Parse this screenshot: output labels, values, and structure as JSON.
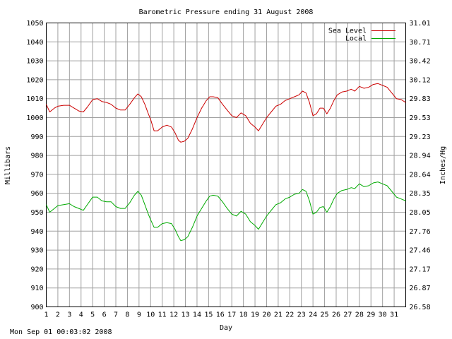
{
  "footer": "Mon Sep 01 00:03:02 2008",
  "chart_data": {
    "type": "line",
    "title": "Barometric Pressure ending 31 August 2008",
    "xlabel": "Day",
    "ylabel": "Millibars",
    "y2label": "Inches/Hg",
    "xlim": [
      1,
      32
    ],
    "ylim": [
      900,
      1050
    ],
    "x_ticks": [
      "1",
      "2",
      "3",
      "4",
      "5",
      "6",
      "7",
      "8",
      "9",
      "10",
      "11",
      "12",
      "13",
      "14",
      "15",
      "16",
      "17",
      "18",
      "19",
      "20",
      "21",
      "22",
      "23",
      "24",
      "25",
      "26",
      "27",
      "28",
      "29",
      "30",
      "31"
    ],
    "y_ticks": [
      "900",
      "910",
      "920",
      "930",
      "940",
      "950",
      "960",
      "970",
      "980",
      "990",
      "1000",
      "1010",
      "1020",
      "1030",
      "1040",
      "1050"
    ],
    "y2_ticks": [
      "26.58",
      "26.87",
      "27.17",
      "27.46",
      "27.76",
      "28.05",
      "28.35",
      "28.64",
      "28.94",
      "29.23",
      "29.53",
      "29.83",
      "30.12",
      "30.42",
      "30.71",
      "31.01"
    ],
    "grid": true,
    "legend_position": "top-right",
    "series": [
      {
        "name": "Sea Level",
        "color": "#cc0000",
        "x": [
          1,
          1.3,
          1.7,
          2,
          2.5,
          3,
          3.4,
          3.8,
          4.2,
          4.6,
          5,
          5.4,
          5.8,
          6.2,
          6.6,
          7,
          7.4,
          7.8,
          8.2,
          8.6,
          8.9,
          9.2,
          9.5,
          9.8,
          10,
          10.3,
          10.6,
          11,
          11.4,
          11.8,
          12.1,
          12.4,
          12.6,
          12.9,
          13.2,
          13.6,
          14,
          14.4,
          14.8,
          15.1,
          15.4,
          15.8,
          16.2,
          16.6,
          17,
          17.4,
          17.8,
          18.2,
          18.6,
          19,
          19.3,
          19.6,
          20,
          20.4,
          20.8,
          21.2,
          21.6,
          22,
          22.4,
          22.8,
          23.1,
          23.4,
          23.7,
          24,
          24.3,
          24.6,
          24.9,
          25.2,
          25.5,
          25.8,
          26.1,
          26.5,
          26.9,
          27.3,
          27.6,
          28,
          28.4,
          28.8,
          29.2,
          29.6,
          30,
          30.4,
          30.8,
          31.2,
          31.6,
          32
        ],
        "values": [
          1007,
          1003,
          1005,
          1006,
          1006.5,
          1006.5,
          1005,
          1003.5,
          1003,
          1006,
          1009.5,
          1010,
          1008.5,
          1008,
          1007,
          1005,
          1004,
          1004,
          1007,
          1010.5,
          1012.5,
          1011,
          1007,
          1002,
          999,
          993,
          993,
          995,
          996,
          995,
          992,
          988,
          987,
          987.5,
          989,
          994,
          1000,
          1005,
          1009,
          1011,
          1011,
          1010.5,
          1007,
          1004,
          1001,
          1000,
          1002.5,
          1001,
          997,
          995,
          993,
          996,
          1000,
          1003,
          1006,
          1007,
          1009,
          1010,
          1011,
          1012,
          1014,
          1013,
          1008,
          1001,
          1002,
          1005,
          1005,
          1002,
          1005,
          1009,
          1012,
          1013.5,
          1014,
          1015,
          1014,
          1016.5,
          1015.5,
          1016,
          1017.5,
          1018,
          1017,
          1016,
          1013,
          1010,
          1009.5,
          1008
        ]
      },
      {
        "name": "Local",
        "color": "#00aa00",
        "x": [
          1,
          1.3,
          1.7,
          2,
          2.5,
          3,
          3.4,
          3.8,
          4.2,
          4.6,
          5,
          5.4,
          5.8,
          6.2,
          6.6,
          7,
          7.4,
          7.8,
          8.2,
          8.6,
          8.9,
          9.2,
          9.5,
          9.8,
          10,
          10.3,
          10.6,
          11,
          11.4,
          11.8,
          12.1,
          12.4,
          12.6,
          12.9,
          13.2,
          13.6,
          14,
          14.4,
          14.8,
          15.1,
          15.4,
          15.8,
          16.2,
          16.6,
          17,
          17.4,
          17.8,
          18.2,
          18.6,
          19,
          19.3,
          19.6,
          20,
          20.4,
          20.8,
          21.2,
          21.6,
          22,
          22.4,
          22.8,
          23.1,
          23.4,
          23.7,
          24,
          24.3,
          24.6,
          24.9,
          25.2,
          25.5,
          25.8,
          26.1,
          26.5,
          26.9,
          27.3,
          27.6,
          28,
          28.4,
          28.8,
          29.2,
          29.6,
          30,
          30.4,
          30.8,
          31.2,
          31.6,
          32
        ],
        "values": [
          954,
          950,
          952,
          953.5,
          954,
          954.5,
          953,
          952,
          951,
          954.5,
          958,
          958,
          956,
          955.5,
          955.5,
          953,
          952,
          952,
          955,
          959,
          961,
          959,
          954,
          949,
          946,
          942,
          942,
          944,
          944.5,
          944,
          941,
          937,
          935,
          935.5,
          937,
          942,
          948,
          952,
          956,
          958.5,
          959,
          958.5,
          955.5,
          952,
          949,
          948,
          950.5,
          949,
          945,
          943,
          941,
          944,
          948,
          951,
          954,
          955,
          957,
          958,
          959.5,
          960,
          962,
          961,
          956,
          949,
          950,
          952.5,
          953,
          950,
          953,
          957,
          960,
          961.5,
          962,
          963,
          962.5,
          965,
          963.5,
          964,
          965.5,
          966,
          965,
          964,
          961,
          958,
          957,
          956
        ]
      }
    ]
  }
}
